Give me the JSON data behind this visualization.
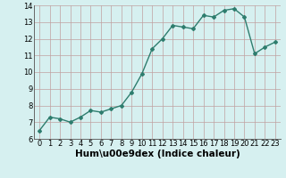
{
  "title": "",
  "xlabel": "Hum\\u00e9dex (Indice chaleur)",
  "ylabel": "",
  "x": [
    0,
    1,
    2,
    3,
    4,
    5,
    6,
    7,
    8,
    9,
    10,
    11,
    12,
    13,
    14,
    15,
    16,
    17,
    18,
    19,
    20,
    21,
    22,
    23
  ],
  "y": [
    6.5,
    7.3,
    7.2,
    7.0,
    7.3,
    7.7,
    7.6,
    7.8,
    8.0,
    8.8,
    9.9,
    11.4,
    12.0,
    12.8,
    12.7,
    12.6,
    13.4,
    13.3,
    13.7,
    13.8,
    13.3,
    11.1,
    11.5,
    11.8
  ],
  "line_color": "#2e7d6e",
  "marker": "D",
  "marker_size": 2,
  "bg_color": "#d6f0f0",
  "grid_color": "#c0a0a0",
  "ylim": [
    6,
    14
  ],
  "xlim": [
    -0.5,
    23.5
  ],
  "yticks": [
    6,
    7,
    8,
    9,
    10,
    11,
    12,
    13,
    14
  ],
  "xticks": [
    0,
    1,
    2,
    3,
    4,
    5,
    6,
    7,
    8,
    9,
    10,
    11,
    12,
    13,
    14,
    15,
    16,
    17,
    18,
    19,
    20,
    21,
    22,
    23
  ],
  "tick_label_size": 6,
  "xlabel_size": 7.5,
  "linewidth": 1.0
}
